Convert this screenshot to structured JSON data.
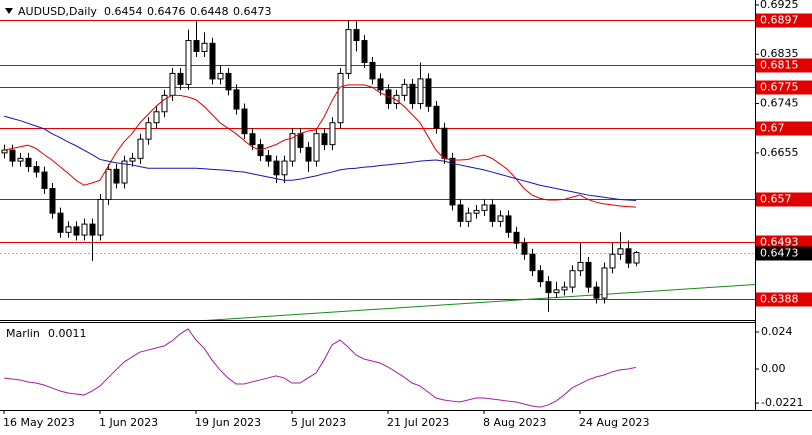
{
  "chart_data": [
    {
      "type": "candlestick",
      "title": "AUDUSD,Daily",
      "categories": [
        "16 May 2023",
        null,
        null,
        null,
        null,
        null,
        null,
        null,
        null,
        null,
        null,
        null,
        "1 Jun 2023",
        null,
        null,
        null,
        null,
        null,
        null,
        null,
        null,
        null,
        null,
        null,
        "19 Jun 2023",
        null,
        null,
        null,
        null,
        null,
        null,
        null,
        null,
        null,
        null,
        null,
        "5 Jul 2023",
        null,
        null,
        null,
        null,
        null,
        null,
        null,
        null,
        null,
        null,
        null,
        "21 Jul 2023",
        null,
        null,
        null,
        null,
        null,
        null,
        null,
        null,
        null,
        null,
        null,
        "8 Aug 2023",
        null,
        null,
        null,
        null,
        null,
        null,
        null,
        null,
        null,
        null,
        null,
        "24 Aug 2023",
        null,
        null,
        null,
        null,
        null,
        null,
        null
      ],
      "open": [
        0.6655,
        0.666,
        0.664,
        0.6645,
        0.663,
        0.662,
        0.659,
        0.6545,
        0.651,
        0.652,
        0.6505,
        0.6525,
        0.6505,
        0.657,
        0.6625,
        0.66,
        0.664,
        0.6645,
        0.668,
        0.671,
        0.673,
        0.676,
        0.68,
        0.678,
        0.686,
        0.684,
        0.6855,
        0.679,
        0.68,
        0.677,
        0.6735,
        0.669,
        0.667,
        0.665,
        0.664,
        0.6615,
        0.664,
        0.669,
        0.6665,
        0.664,
        0.669,
        0.667,
        0.671,
        0.68,
        0.688,
        0.686,
        0.682,
        0.679,
        0.677,
        0.6745,
        0.676,
        0.678,
        0.6745,
        0.679,
        0.674,
        0.67,
        0.6645,
        0.656,
        0.653,
        0.6545,
        0.655,
        0.656,
        0.653,
        0.654,
        0.651,
        0.649,
        0.647,
        0.644,
        0.642,
        0.64,
        0.6405,
        0.641,
        0.644,
        0.6455,
        0.641,
        0.639,
        0.6445,
        0.647,
        0.648,
        0.6454
      ],
      "high": [
        0.667,
        0.667,
        0.6655,
        0.6655,
        0.664,
        0.663,
        0.66,
        0.6555,
        0.653,
        0.653,
        0.6535,
        0.6535,
        0.658,
        0.6635,
        0.6635,
        0.665,
        0.6655,
        0.669,
        0.672,
        0.674,
        0.677,
        0.681,
        0.681,
        0.688,
        0.6895,
        0.6875,
        0.6865,
        0.6815,
        0.681,
        0.678,
        0.6745,
        0.67,
        0.668,
        0.666,
        0.665,
        0.665,
        0.67,
        0.67,
        0.6675,
        0.67,
        0.67,
        0.672,
        0.681,
        0.6897,
        0.6895,
        0.687,
        0.683,
        0.68,
        0.678,
        0.677,
        0.679,
        0.679,
        0.682,
        0.68,
        0.675,
        0.671,
        0.6655,
        0.657,
        0.6555,
        0.656,
        0.657,
        0.657,
        0.655,
        0.655,
        0.652,
        0.65,
        0.648,
        0.645,
        0.643,
        0.642,
        0.642,
        0.645,
        0.649,
        0.6465,
        0.642,
        0.6455,
        0.649,
        0.651,
        0.6495,
        0.6476
      ],
      "low": [
        0.6645,
        0.663,
        0.663,
        0.662,
        0.661,
        0.658,
        0.6535,
        0.65,
        0.65,
        0.6495,
        0.6495,
        0.6458,
        0.6495,
        0.656,
        0.659,
        0.659,
        0.663,
        0.6635,
        0.667,
        0.67,
        0.672,
        0.675,
        0.677,
        0.677,
        0.683,
        0.683,
        0.678,
        0.678,
        0.676,
        0.6725,
        0.668,
        0.666,
        0.664,
        0.663,
        0.66,
        0.66,
        0.663,
        0.6655,
        0.662,
        0.663,
        0.666,
        0.666,
        0.67,
        0.679,
        0.684,
        0.681,
        0.678,
        0.676,
        0.6735,
        0.6735,
        0.675,
        0.6735,
        0.6735,
        0.673,
        0.669,
        0.6635,
        0.655,
        0.652,
        0.652,
        0.6535,
        0.654,
        0.652,
        0.652,
        0.65,
        0.648,
        0.646,
        0.643,
        0.641,
        0.6365,
        0.639,
        0.6395,
        0.64,
        0.643,
        0.64,
        0.638,
        0.638,
        0.6435,
        0.646,
        0.6445,
        0.6448
      ],
      "close": [
        0.666,
        0.664,
        0.6645,
        0.663,
        0.662,
        0.659,
        0.6545,
        0.651,
        0.652,
        0.6505,
        0.6525,
        0.6505,
        0.657,
        0.6625,
        0.66,
        0.664,
        0.6645,
        0.668,
        0.671,
        0.673,
        0.676,
        0.68,
        0.678,
        0.686,
        0.684,
        0.6855,
        0.679,
        0.68,
        0.677,
        0.6735,
        0.669,
        0.667,
        0.665,
        0.664,
        0.6615,
        0.664,
        0.669,
        0.6665,
        0.664,
        0.669,
        0.667,
        0.671,
        0.68,
        0.688,
        0.686,
        0.682,
        0.679,
        0.677,
        0.6745,
        0.676,
        0.678,
        0.6745,
        0.679,
        0.674,
        0.67,
        0.6645,
        0.656,
        0.653,
        0.6545,
        0.655,
        0.656,
        0.653,
        0.654,
        0.651,
        0.649,
        0.647,
        0.644,
        0.642,
        0.64,
        0.6405,
        0.641,
        0.644,
        0.6455,
        0.641,
        0.639,
        0.6445,
        0.647,
        0.648,
        0.6454,
        0.6473
      ],
      "up_color": "#ffffff",
      "down_color": "#000000",
      "series": [
        {
          "color": "#e00000",
          "values": [
            0.666,
            0.6663,
            0.6666,
            0.6669,
            0.6663,
            0.6652,
            0.6642,
            0.663,
            0.6618,
            0.6605,
            0.6596,
            0.66,
            0.6605,
            0.663,
            0.6655,
            0.6675,
            0.669,
            0.671,
            0.6725,
            0.674,
            0.6752,
            0.676,
            0.676,
            0.6757,
            0.6752,
            0.674,
            0.6725,
            0.671,
            0.67,
            0.669,
            0.6678,
            0.6666,
            0.666,
            0.6665,
            0.667,
            0.6678,
            0.6682,
            0.669,
            0.6695,
            0.6697,
            0.672,
            0.675,
            0.6775,
            0.6779,
            0.6779,
            0.6779,
            0.6775,
            0.6765,
            0.6758,
            0.6752,
            0.674,
            0.6725,
            0.671,
            0.6685,
            0.666,
            0.6645,
            0.6642,
            0.6642,
            0.6643,
            0.6648,
            0.6651,
            0.6645,
            0.6635,
            0.6624,
            0.6608,
            0.659,
            0.6578,
            0.6572,
            0.6569,
            0.6569,
            0.657,
            0.6574,
            0.6578,
            0.657,
            0.6565,
            0.6562,
            0.656,
            0.6558,
            0.6557,
            0.6556
          ]
        },
        {
          "color": "#1414b4",
          "values": [
            0.6722,
            0.6718,
            0.6714,
            0.6709,
            0.6704,
            0.6699,
            0.669,
            0.6683,
            0.6675,
            0.6668,
            0.666,
            0.6652,
            0.6643,
            0.664,
            0.6637,
            0.6635,
            0.6633,
            0.663,
            0.6627,
            0.6627,
            0.6627,
            0.6627,
            0.6627,
            0.6627,
            0.6627,
            0.6626,
            0.6625,
            0.6624,
            0.6623,
            0.6621,
            0.662,
            0.6617,
            0.6614,
            0.6611,
            0.6608,
            0.6605,
            0.6605,
            0.6607,
            0.661,
            0.6613,
            0.6617,
            0.662,
            0.6624,
            0.6626,
            0.6627,
            0.6629,
            0.663,
            0.6632,
            0.6633,
            0.6635,
            0.6636,
            0.6638,
            0.664,
            0.6641,
            0.6642,
            0.664,
            0.6636,
            0.6633,
            0.663,
            0.6627,
            0.6624,
            0.662,
            0.6616,
            0.6612,
            0.6608,
            0.6604,
            0.66,
            0.6596,
            0.6593,
            0.659,
            0.6587,
            0.6584,
            0.6581,
            0.6578,
            0.6576,
            0.6574,
            0.6572,
            0.657,
            0.6569,
            0.6568
          ]
        }
      ],
      "levels": {
        "color": "#e00000",
        "values": [
          0.6897,
          0.6815,
          0.6775,
          0.67,
          0.657,
          0.6493,
          0.6388
        ]
      },
      "trendline": {
        "color": "#1a8a1a",
        "points": [
          [
            24,
            0.6348
          ],
          [
            94,
            0.6415
          ]
        ]
      },
      "ylim": [
        0.635,
        0.6934
      ],
      "yticks": [
        0.6925,
        0.6835,
        0.6745,
        0.6655
      ]
    },
    {
      "type": "line",
      "title": "Marlin",
      "color": "#a020a0",
      "values": [
        -0.0058,
        -0.0065,
        -0.0071,
        -0.0084,
        -0.0091,
        -0.0104,
        -0.0123,
        -0.0143,
        -0.0156,
        -0.0162,
        -0.0169,
        -0.0143,
        -0.011,
        -0.0058,
        -0.0006,
        0.0045,
        0.0078,
        0.011,
        0.0123,
        0.0136,
        0.0149,
        0.0182,
        0.0227,
        0.026,
        0.0188,
        0.0136,
        0.0058,
        -0.0006,
        -0.0058,
        -0.0097,
        -0.0097,
        -0.0084,
        -0.0071,
        -0.0058,
        -0.0045,
        -0.0058,
        -0.0091,
        -0.0091,
        -0.0058,
        -0.0026,
        0.0058,
        0.0156,
        0.0188,
        0.0143,
        0.0091,
        0.0065,
        0.0052,
        0.0039,
        0.0013,
        -0.0019,
        -0.0052,
        -0.0091,
        -0.011,
        -0.0149,
        -0.0188,
        -0.0201,
        -0.0208,
        -0.0214,
        -0.0201,
        -0.0188,
        -0.0188,
        -0.0195,
        -0.0201,
        -0.0208,
        -0.0214,
        -0.0227,
        -0.024,
        -0.0247,
        -0.0234,
        -0.0208,
        -0.0169,
        -0.0123,
        -0.0097,
        -0.0071,
        -0.0052,
        -0.0039,
        -0.0019,
        -0.0006,
        0,
        0.0011
      ],
      "ylim": [
        -0.0266,
        0.0305
      ],
      "yticks": [
        0.024,
        {
          "value": 0,
          "label": "0.00"
        },
        -0.0221
      ]
    }
  ]
}
